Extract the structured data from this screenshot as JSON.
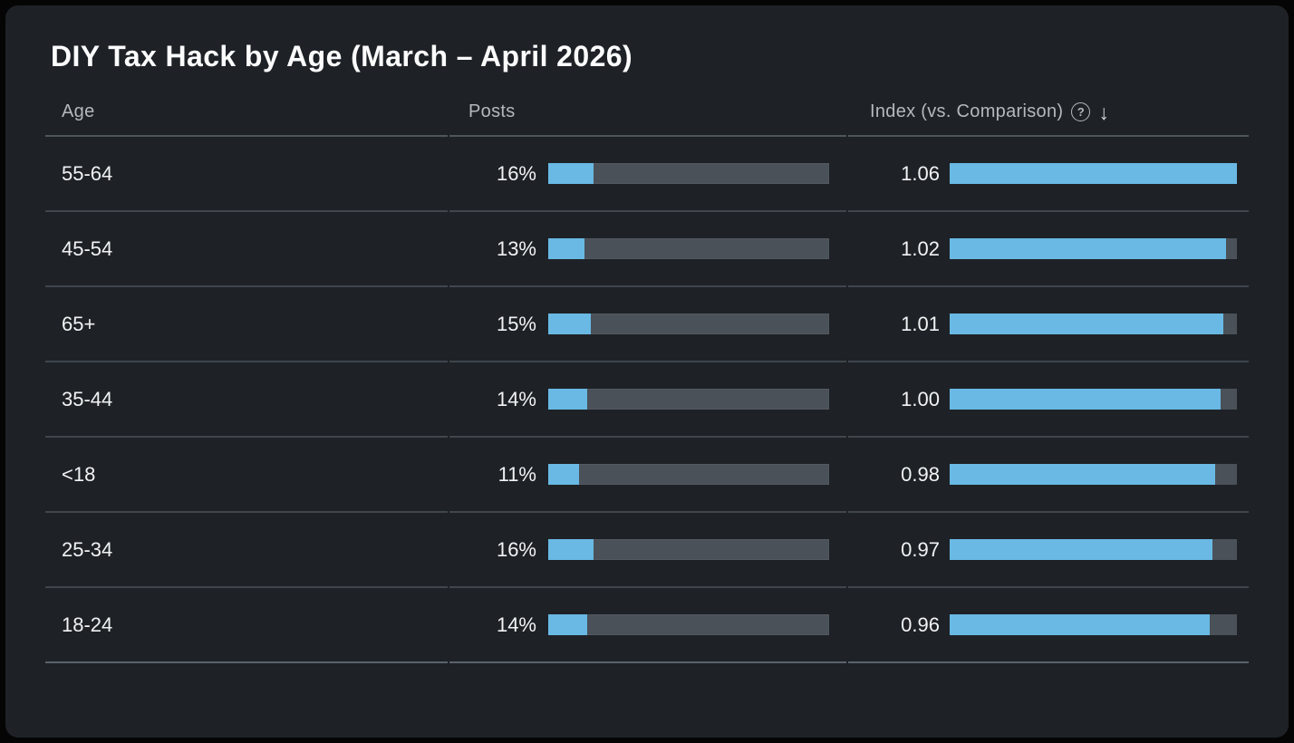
{
  "title": "DIY Tax Hack by Age (March – April 2026)",
  "table": {
    "columns": {
      "age": "Age",
      "posts": "Posts",
      "index": "Index (vs. Comparison)"
    },
    "help_icon": "?",
    "sort_icon": "↓",
    "index_max": 1.06,
    "rows": [
      {
        "age": "55-64",
        "posts": "16%",
        "posts_value": 16,
        "index": "1.06",
        "index_value": 1.06
      },
      {
        "age": "45-54",
        "posts": "13%",
        "posts_value": 13,
        "index": "1.02",
        "index_value": 1.02
      },
      {
        "age": "65+",
        "posts": "15%",
        "posts_value": 15,
        "index": "1.01",
        "index_value": 1.01
      },
      {
        "age": "35-44",
        "posts": "14%",
        "posts_value": 14,
        "index": "1.00",
        "index_value": 1.0
      },
      {
        "age": "<18",
        "posts": "11%",
        "posts_value": 11,
        "index": "0.98",
        "index_value": 0.98
      },
      {
        "age": "25-34",
        "posts": "16%",
        "posts_value": 16,
        "index": "0.97",
        "index_value": 0.97
      },
      {
        "age": "18-24",
        "posts": "14%",
        "posts_value": 14,
        "index": "0.96",
        "index_value": 0.96
      }
    ]
  },
  "colors": {
    "accent_blue": "#69b9e4",
    "bar_track_gray": "#4a5158",
    "panel_bg": "#1e2227",
    "outer_bg": "#050505"
  },
  "chart_data": {
    "type": "bar",
    "orientation": "horizontal",
    "title": "DIY Tax Hack by Age (March – April 2026)",
    "categories": [
      "55-64",
      "45-54",
      "65+",
      "35-44",
      "<18",
      "25-34",
      "18-24"
    ],
    "series": [
      {
        "name": "Posts",
        "unit": "%",
        "values": [
          16,
          13,
          15,
          14,
          11,
          16,
          14
        ],
        "axis_range": [
          0,
          100
        ]
      },
      {
        "name": "Index (vs. Comparison)",
        "values": [
          1.06,
          1.02,
          1.01,
          1.0,
          0.98,
          0.97,
          0.96
        ],
        "axis_range": [
          0,
          1.06
        ]
      }
    ],
    "sort": "Index descending",
    "legend_position": "none",
    "grid": false
  }
}
